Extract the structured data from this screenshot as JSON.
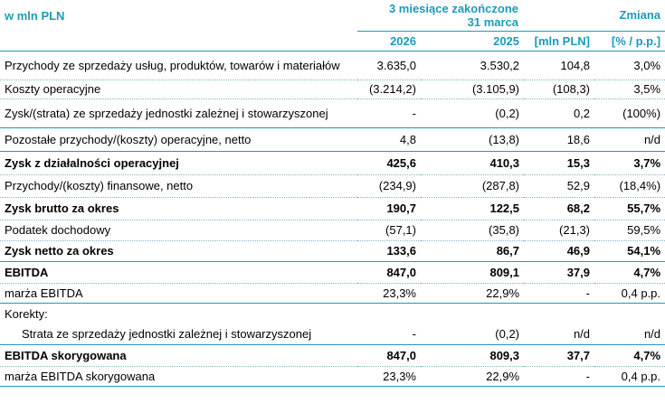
{
  "header": {
    "unit_label": "w mln PLN",
    "period_label_line1": "3 miesiące zakończone",
    "period_label_line2": "31 marca",
    "change_label": "Zmiana",
    "year1": "2026",
    "year2": "2025",
    "change_abs_label": "[mln PLN]",
    "change_pct_label": "[% / p.p.]"
  },
  "rows": [
    {
      "label": "Przychody ze sprzedaży usług, produktów, towarów i materiałów",
      "v2026": "3.635,0",
      "v2025": "3.530,2",
      "abs": "104,8",
      "pct": "3,0%"
    },
    {
      "label": "Koszty operacyjne",
      "v2026": "(3.214,2)",
      "v2025": "(3.105,9)",
      "abs": "(108,3)",
      "pct": "3,5%"
    },
    {
      "label": "Zysk/(strata) ze sprzedaży jednostki zależnej i stowarzyszonej",
      "v2026": "-",
      "v2025": "(0,2)",
      "abs": "0,2",
      "pct": "(100%)"
    },
    {
      "label": "Pozostałe przychody/(koszty) operacyjne, netto",
      "v2026": "4,8",
      "v2025": "(13,8)",
      "abs": "18,6",
      "pct": "n/d"
    },
    {
      "label": "Zysk z działalności operacyjnej",
      "v2026": "425,6",
      "v2025": "410,3",
      "abs": "15,3",
      "pct": "3,7%"
    },
    {
      "label": "Przychody/(koszty) finansowe, netto",
      "v2026": "(234,9)",
      "v2025": "(287,8)",
      "abs": "52,9",
      "pct": "(18,4%)"
    },
    {
      "label": "Zysk brutto za okres",
      "v2026": "190,7",
      "v2025": "122,5",
      "abs": "68,2",
      "pct": "55,7%"
    },
    {
      "label": "Podatek dochodowy",
      "v2026": "(57,1)",
      "v2025": "(35,8)",
      "abs": "(21,3)",
      "pct": "59,5%"
    },
    {
      "label": "Zysk netto za okres",
      "v2026": "133,6",
      "v2025": "86,7",
      "abs": "46,9",
      "pct": "54,1%"
    },
    {
      "label": "EBITDA",
      "v2026": "847,0",
      "v2025": "809,1",
      "abs": "37,9",
      "pct": "4,7%"
    },
    {
      "label": "marża EBITDA",
      "v2026": "23,3%",
      "v2025": "22,9%",
      "abs": "-",
      "pct": "0,4 p.p."
    },
    {
      "label": "Korekty:",
      "v2026": "",
      "v2025": "",
      "abs": "",
      "pct": ""
    },
    {
      "label": "Strata ze sprzedaży jednostki zależnej i stowarzyszonej",
      "v2026": "-",
      "v2025": "(0,2)",
      "abs": "n/d",
      "pct": "n/d"
    },
    {
      "label": "EBITDA skorygowana",
      "v2026": "847,0",
      "v2025": "809,3",
      "abs": "37,7",
      "pct": "4,7%"
    },
    {
      "label": "marża EBITDA skorygowana",
      "v2026": "23,3%",
      "v2025": "22,9%",
      "abs": "-",
      "pct": "0,4 p.p."
    }
  ]
}
